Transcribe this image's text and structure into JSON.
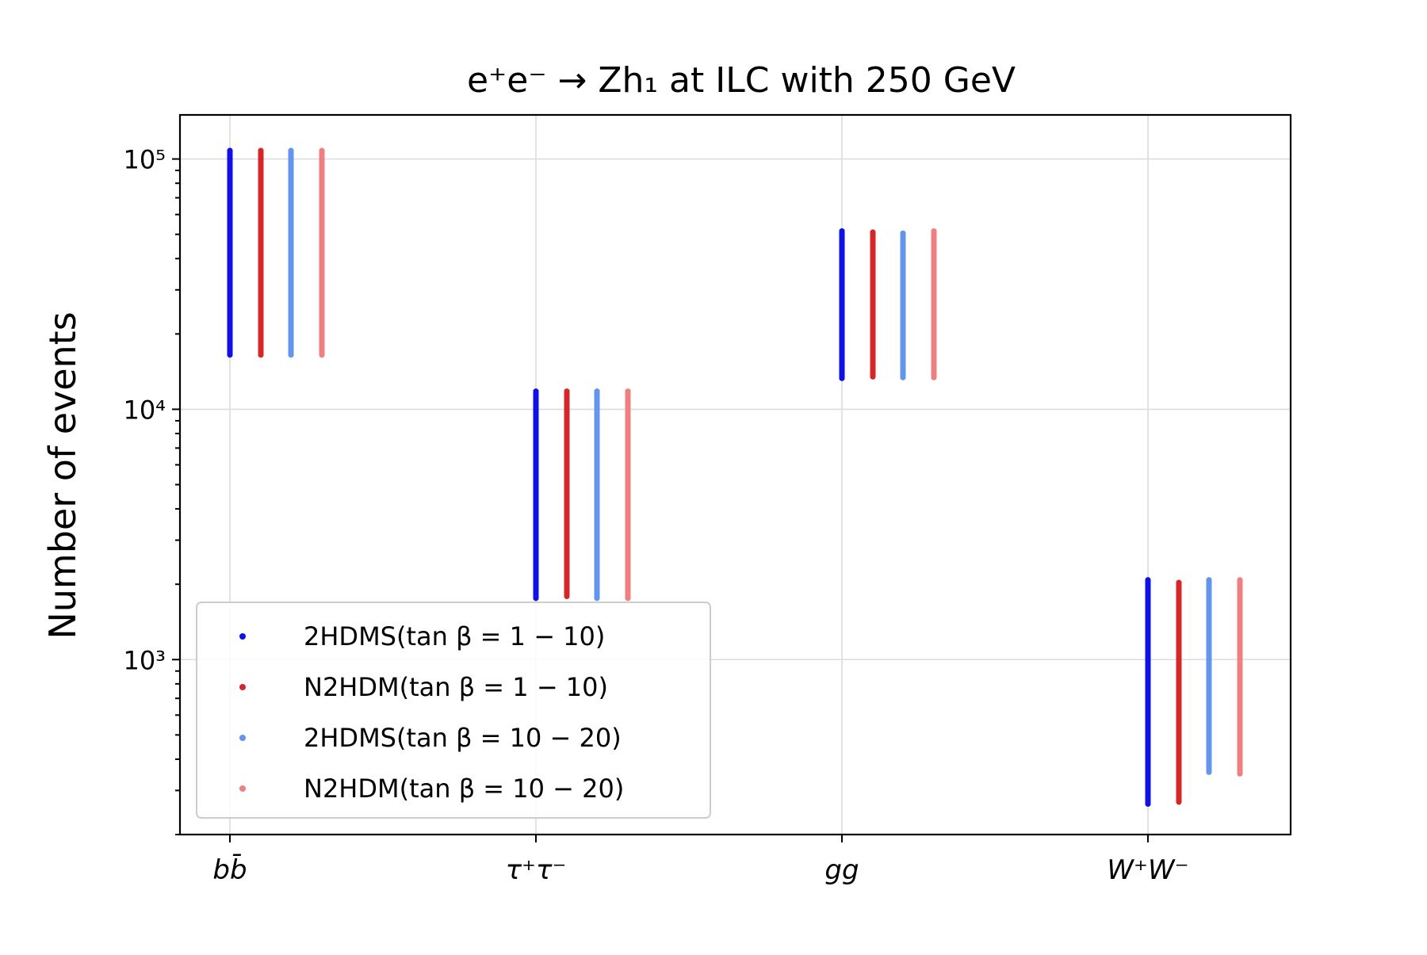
{
  "chart_data": {
    "type": "scatter",
    "title": "e⁺e⁻ → Zh₁ at ILC with 250 GeV",
    "xlabel": "",
    "ylabel": "Number of events",
    "yscale": "log",
    "ylim": [
      200,
      150000
    ],
    "grid": true,
    "legend_position": "lower-left",
    "categories": [
      "bb̄",
      "τ⁺τ⁻",
      "gg",
      "W⁺W⁻"
    ],
    "y_ticks": [
      {
        "value": 1000,
        "label": "10³"
      },
      {
        "value": 10000,
        "label": "10⁴"
      },
      {
        "value": 100000,
        "label": "10⁵"
      }
    ],
    "series": [
      {
        "name": "2HDMS(tan β = 1 − 10)",
        "color": "#1010e8",
        "ranges": [
          {
            "category": "bb̄",
            "min": 16500,
            "max": 108000
          },
          {
            "category": "τ⁺τ⁻",
            "min": 1760,
            "max": 11800
          },
          {
            "category": "gg",
            "min": 13300,
            "max": 51500
          },
          {
            "category": "W⁺W⁻",
            "min": 265,
            "max": 2080
          }
        ]
      },
      {
        "name": "N2HDM(tan β = 1 − 10)",
        "color": "#d62728",
        "ranges": [
          {
            "category": "bb̄",
            "min": 16500,
            "max": 108000
          },
          {
            "category": "τ⁺τ⁻",
            "min": 1790,
            "max": 11800
          },
          {
            "category": "gg",
            "min": 13500,
            "max": 51000
          },
          {
            "category": "W⁺W⁻",
            "min": 270,
            "max": 2030
          }
        ]
      },
      {
        "name": "2HDMS(tan β = 10 − 20)",
        "color": "#6495ed",
        "ranges": [
          {
            "category": "bb̄",
            "min": 16500,
            "max": 108000
          },
          {
            "category": "τ⁺τ⁻",
            "min": 1760,
            "max": 11800
          },
          {
            "category": "gg",
            "min": 13400,
            "max": 50500
          },
          {
            "category": "W⁺W⁻",
            "min": 355,
            "max": 2080
          }
        ]
      },
      {
        "name": "N2HDM(tan β = 10 − 20)",
        "color": "#f08080",
        "ranges": [
          {
            "category": "bb̄",
            "min": 16500,
            "max": 108000
          },
          {
            "category": "τ⁺τ⁻",
            "min": 1760,
            "max": 11800
          },
          {
            "category": "gg",
            "min": 13400,
            "max": 51500
          },
          {
            "category": "W⁺W⁻",
            "min": 350,
            "max": 2080
          }
        ]
      }
    ]
  }
}
